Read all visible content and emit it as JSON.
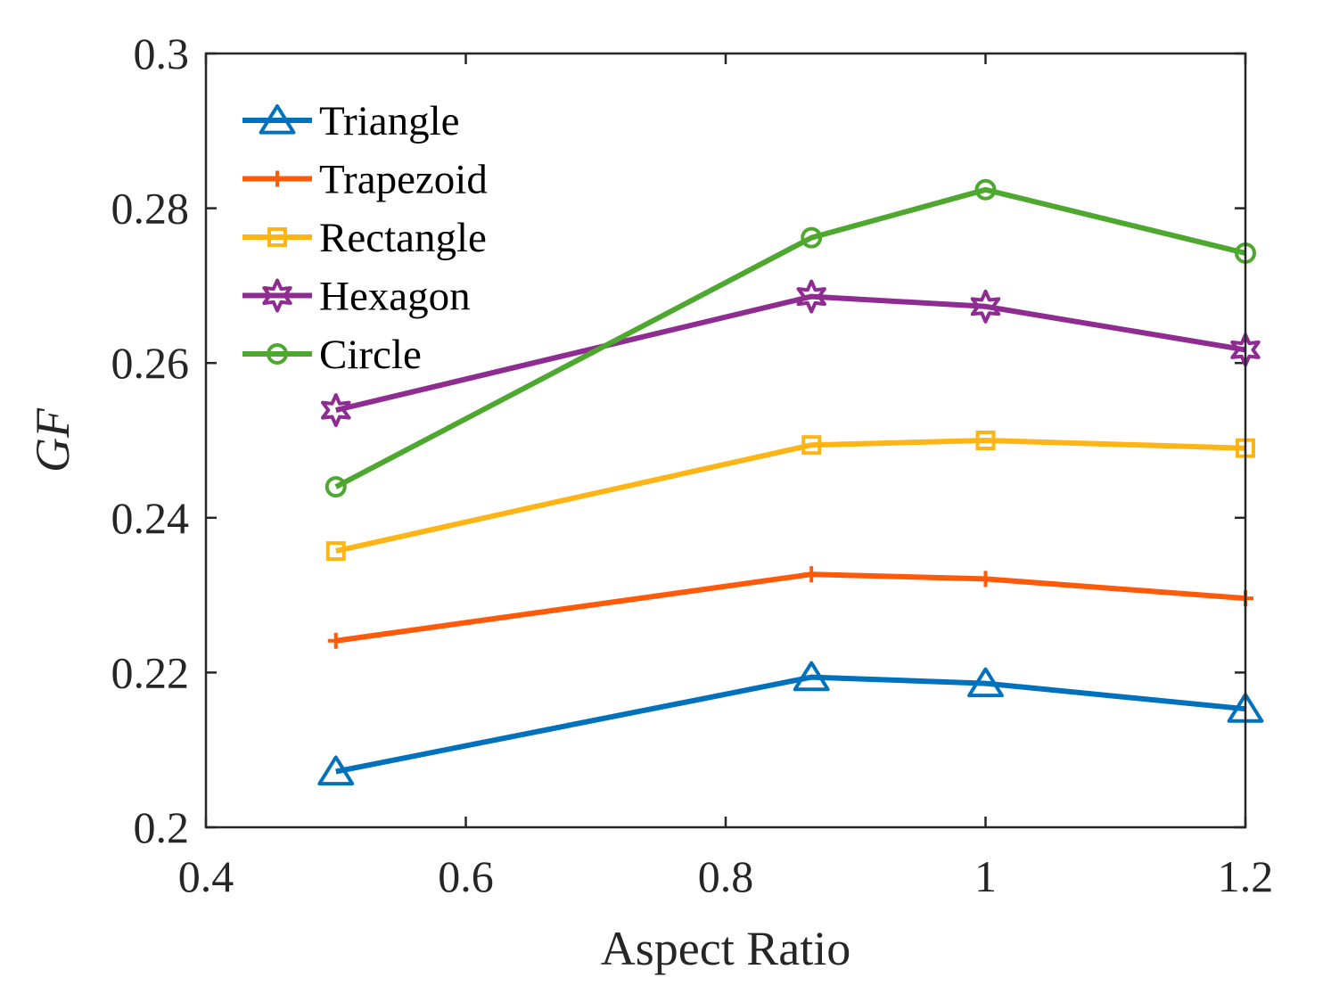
{
  "chart_data": {
    "type": "line",
    "title": "",
    "xlabel": "Aspect Ratio",
    "ylabel": "GF",
    "xlim": [
      0.4,
      1.2
    ],
    "ylim": [
      0.2,
      0.3
    ],
    "xticks": [
      "0.4",
      "0.6",
      "0.8",
      "1",
      "1.2"
    ],
    "yticks": [
      "0.2",
      "0.22",
      "0.24",
      "0.26",
      "0.28",
      "0.3"
    ],
    "grid": false,
    "legend_position": "top-left",
    "x": [
      0.5,
      0.866,
      1.0,
      1.2
    ],
    "series": [
      {
        "name": "Triangle",
        "marker": "triangle",
        "color": "#0072BD",
        "values": [
          0.2072,
          0.2194,
          0.2186,
          0.2153
        ]
      },
      {
        "name": "Trapezoid",
        "marker": "plus",
        "color": "#FF5A0A",
        "values": [
          0.2241,
          0.2327,
          0.2321,
          0.2296
        ]
      },
      {
        "name": "Rectangle",
        "marker": "square",
        "color": "#FDB515",
        "values": [
          0.2357,
          0.2494,
          0.25,
          0.249
        ]
      },
      {
        "name": "Hexagon",
        "marker": "hexagram",
        "color": "#8E2C91",
        "values": [
          0.2539,
          0.2686,
          0.2673,
          0.2617
        ]
      },
      {
        "name": "Circle",
        "marker": "circle",
        "color": "#4EA72E",
        "values": [
          0.244,
          0.2762,
          0.2824,
          0.2742
        ]
      }
    ]
  }
}
